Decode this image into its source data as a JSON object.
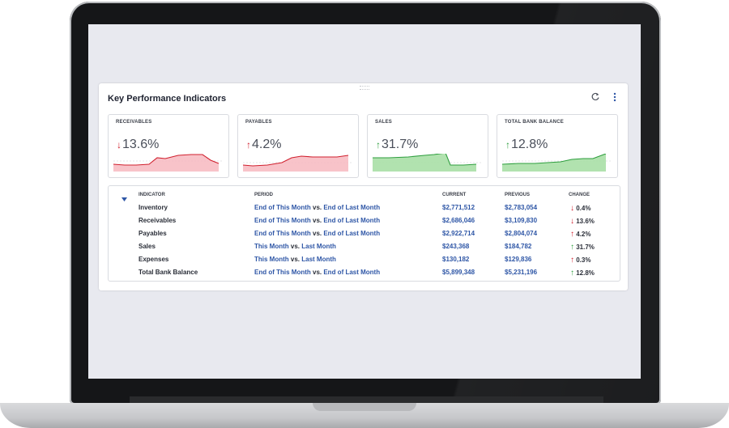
{
  "card": {
    "title": "Key Performance Indicators"
  },
  "tiles": [
    {
      "label": "RECEIVABLES",
      "value": "13.6%",
      "direction": "down",
      "color": "#d0202e"
    },
    {
      "label": "PAYABLES",
      "value": "4.2%",
      "direction": "up",
      "color": "#d0202e"
    },
    {
      "label": "SALES",
      "value": "31.7%",
      "direction": "up",
      "color": "#2e9e3e"
    },
    {
      "label": "TOTAL BANK BALANCE",
      "value": "12.8%",
      "direction": "up",
      "color": "#2e9e3e"
    }
  ],
  "table": {
    "headers": {
      "indicator": "INDICATOR",
      "period": "PERIOD",
      "current": "CURRENT",
      "previous": "PREVIOUS",
      "change": "CHANGE"
    },
    "rows": [
      {
        "indicator": "Inventory",
        "p1": "End of This Month",
        "vs": " vs. ",
        "p2": "End of Last Month",
        "current": "$2,771,512",
        "previous": "$2,783,054",
        "change": "0.4%",
        "dir": "down",
        "good": false
      },
      {
        "indicator": "Receivables",
        "p1": "End of This Month",
        "vs": " vs. ",
        "p2": "End of Last Month",
        "current": "$2,686,046",
        "previous": "$3,109,830",
        "change": "13.6%",
        "dir": "down",
        "good": false
      },
      {
        "indicator": "Payables",
        "p1": "End of This Month",
        "vs": " vs. ",
        "p2": "End of Last Month",
        "current": "$2,922,714",
        "previous": "$2,804,074",
        "change": "4.2%",
        "dir": "up",
        "good": false
      },
      {
        "indicator": "Sales",
        "p1": "This Month",
        "vs": " vs. ",
        "p2": "Last Month",
        "current": "$243,368",
        "previous": "$184,782",
        "change": "31.7%",
        "dir": "up",
        "good": true
      },
      {
        "indicator": "Expenses",
        "p1": "This Month",
        "vs": " vs. ",
        "p2": "Last Month",
        "current": "$130,182",
        "previous": "$129,836",
        "change": "0.3%",
        "dir": "up",
        "good": false
      },
      {
        "indicator": "Total Bank Balance",
        "p1": "End of This Month",
        "vs": " vs. ",
        "p2": "End of Last Month",
        "current": "$5,899,348",
        "previous": "$5,231,196",
        "change": "12.8%",
        "dir": "up",
        "good": true
      }
    ]
  },
  "icons": {
    "refresh": "refresh-icon",
    "more": "more-vertical-icon",
    "sort": "caret-down-icon"
  }
}
